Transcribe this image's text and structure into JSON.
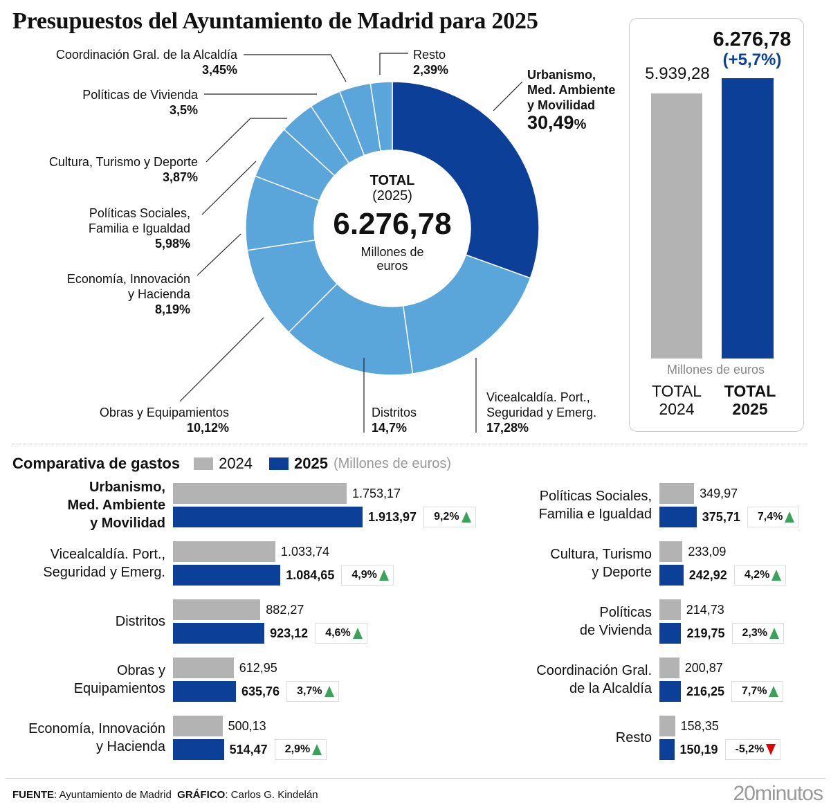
{
  "title": "Presupuestos del Ayuntamiento de Madrid para 2025",
  "colors": {
    "dark_blue": "#0c3f97",
    "light_blue": "#5aa5da",
    "gray": "#b3b3b3",
    "up": "#3aa35a",
    "down": "#e00000"
  },
  "donut": {
    "center_title": "TOTAL",
    "center_year": "(2025)",
    "center_value": "6.276,78",
    "center_unit": "Millones de euros"
  },
  "total_box": {
    "value_2024": "5.939,28",
    "value_2025": "6.276,78",
    "change": "(+5,7%)",
    "unit": "Millones de euros",
    "label_2024": [
      "TOTAL",
      "2024"
    ],
    "label_2025": [
      "TOTAL",
      "2025"
    ]
  },
  "comparison": {
    "title": "Comparativa de gastos",
    "legend_2024": "2024",
    "legend_2025": "2025",
    "legend_unit": "(Millones de euros)"
  },
  "footer": {
    "source_label": "FUENTE",
    "source": ": Ayuntamiento de Madrid",
    "graphic_label": "GRÁFICO",
    "graphic": ": Carlos G. Kindelán",
    "logo": "20minutos"
  },
  "chart_data": [
    {
      "type": "pie",
      "subtype": "donut",
      "unit": "%",
      "slices": [
        {
          "label": "Urbanismo, Med. Ambiente y Movilidad",
          "lines": [
            "Urbanismo,",
            "Med. Ambiente",
            "y Movilidad"
          ],
          "value": 30.49,
          "text": "30,49",
          "color": "#0c3f97"
        },
        {
          "label": "Vicealcaldía. Port., Seguridad y Emerg.",
          "lines": [
            "Vicealcaldía. Port.,",
            "Seguridad y Emerg."
          ],
          "value": 17.28,
          "text": "17,28%",
          "color": "#5aa5da"
        },
        {
          "label": "Distritos",
          "lines": [
            "Distritos"
          ],
          "value": 14.7,
          "text": "14,7%",
          "color": "#5aa5da"
        },
        {
          "label": "Obras y Equipamientos",
          "lines": [
            "Obras y Equipamientos"
          ],
          "value": 10.12,
          "text": "10,12%",
          "color": "#5aa5da"
        },
        {
          "label": "Economía, Innovación y Hacienda",
          "lines": [
            "Economía, Innovación",
            "y Hacienda"
          ],
          "value": 8.19,
          "text": "8,19%",
          "color": "#5aa5da"
        },
        {
          "label": "Políticas Sociales, Familia e Igualdad",
          "lines": [
            "Políticas Sociales,",
            "Familia e Igualdad"
          ],
          "value": 5.98,
          "text": "5,98%",
          "color": "#5aa5da"
        },
        {
          "label": "Cultura, Turismo y Deporte",
          "lines": [
            "Cultura, Turismo y Deporte"
          ],
          "value": 3.87,
          "text": "3,87%",
          "color": "#5aa5da"
        },
        {
          "label": "Políticas de Vivienda",
          "lines": [
            "Políticas de Vivienda"
          ],
          "value": 3.5,
          "text": "3,5%",
          "color": "#5aa5da"
        },
        {
          "label": "Coordinación Gral. de la Alcaldía",
          "lines": [
            "Coordinación Gral. de la Alcaldía"
          ],
          "value": 3.45,
          "text": "3,45%",
          "color": "#5aa5da"
        },
        {
          "label": "Resto",
          "lines": [
            "Resto"
          ],
          "value": 2.39,
          "text": "2,39%",
          "color": "#5aa5da"
        }
      ]
    },
    {
      "type": "bar",
      "categories": [
        "TOTAL 2024",
        "TOTAL 2025"
      ],
      "values": [
        5939.28,
        6276.78
      ],
      "ylabel": "Millones de euros"
    },
    {
      "type": "bar",
      "orientation": "horizontal",
      "series_names": [
        "2024",
        "2025"
      ],
      "items": [
        {
          "lines": [
            "Urbanismo,",
            "Med. Ambiente",
            "y Movilidad"
          ],
          "bold": true,
          "v2024": 1753.17,
          "v2025": 1913.97,
          "t2024": "1.753,17",
          "t2025": "1.913,97",
          "change": "9,2%",
          "dir": "up"
        },
        {
          "lines": [
            "Vicealcaldía. Port.,",
            "Seguridad y Emerg."
          ],
          "v2024": 1033.74,
          "v2025": 1084.65,
          "t2024": "1.033,74",
          "t2025": "1.084,65",
          "change": "4,9%",
          "dir": "up"
        },
        {
          "lines": [
            "Distritos"
          ],
          "v2024": 882.27,
          "v2025": 923.12,
          "t2024": "882,27",
          "t2025": "923,12",
          "change": "4,6%",
          "dir": "up"
        },
        {
          "lines": [
            "Obras y",
            "Equipamientos"
          ],
          "v2024": 612.95,
          "v2025": 635.76,
          "t2024": "612,95",
          "t2025": "635,76",
          "change": "3,7%",
          "dir": "up"
        },
        {
          "lines": [
            "Economía, Innovación",
            "y Hacienda"
          ],
          "v2024": 500.13,
          "v2025": 514.47,
          "t2024": "500,13",
          "t2025": "514,47",
          "change": "2,9%",
          "dir": "up"
        },
        {
          "lines": [
            "Políticas Sociales,",
            "Familia e Igualdad"
          ],
          "v2024": 349.97,
          "v2025": 375.71,
          "t2024": "349,97",
          "t2025": "375,71",
          "change": "7,4%",
          "dir": "up"
        },
        {
          "lines": [
            "Cultura, Turismo",
            "y Deporte"
          ],
          "v2024": 233.09,
          "v2025": 242.92,
          "t2024": "233,09",
          "t2025": "242,92",
          "change": "4,2%",
          "dir": "up"
        },
        {
          "lines": [
            "Políticas",
            "de Vivienda"
          ],
          "v2024": 214.73,
          "v2025": 219.75,
          "t2024": "214,73",
          "t2025": "219,75",
          "change": "2,3%",
          "dir": "up"
        },
        {
          "lines": [
            "Coordinación Gral.",
            "de la Alcaldía"
          ],
          "v2024": 200.87,
          "v2025": 216.25,
          "t2024": "200,87",
          "t2025": "216,25",
          "change": "7,7%",
          "dir": "up"
        },
        {
          "lines": [
            "Resto"
          ],
          "v2024": 158.35,
          "v2025": 150.19,
          "t2024": "158,35",
          "t2025": "150,19",
          "change": "-5,2%",
          "dir": "down"
        }
      ]
    }
  ]
}
